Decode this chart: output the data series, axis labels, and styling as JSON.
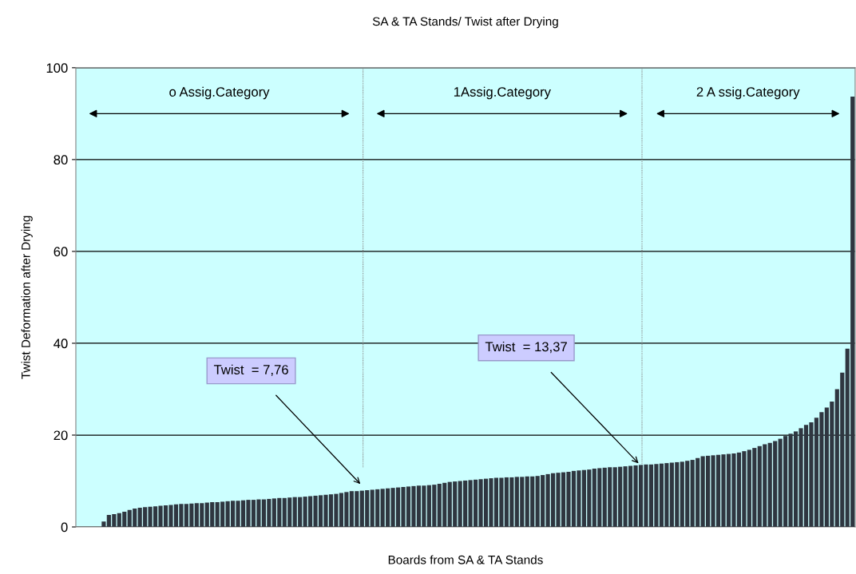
{
  "chart_data": {
    "type": "bar",
    "title": "SA & TA Stands/ Twist after Drying",
    "xlabel": "Boards from SA & TA Stands",
    "ylabel": "Twist Deformation after Drying",
    "categories": [
      null,
      null,
      null,
      null,
      null,
      null,
      null,
      null,
      null,
      null,
      null,
      null,
      null,
      null,
      null,
      null,
      null,
      null,
      null,
      null,
      null,
      null,
      null,
      null,
      null,
      null,
      null,
      null,
      null,
      null,
      null,
      null,
      null,
      null,
      null,
      null,
      null,
      null,
      null,
      null,
      null,
      null,
      null,
      null,
      null,
      null,
      null,
      null,
      null,
      null,
      null,
      null,
      null,
      null,
      null,
      null,
      null,
      null,
      null,
      null,
      null,
      null,
      null,
      null,
      null,
      null,
      null,
      null,
      null,
      null,
      null,
      null,
      null,
      null,
      null,
      null,
      null,
      null,
      null,
      null,
      null,
      null,
      null,
      null,
      null,
      null,
      null,
      null,
      null,
      null,
      null,
      null,
      null,
      null,
      null,
      null,
      null,
      null,
      null,
      null,
      null,
      null,
      null,
      null,
      null,
      null,
      null,
      null,
      null,
      null,
      null,
      null,
      null,
      null,
      null,
      null,
      null,
      null,
      null,
      null,
      null,
      null,
      null,
      null,
      null,
      null,
      null,
      null,
      null,
      null,
      null,
      null,
      null,
      null,
      null,
      null,
      null,
      null,
      null,
      null,
      null,
      null,
      null,
      null,
      null,
      null
    ],
    "values": [
      1.2,
      2.6,
      2.8,
      3.0,
      3.3,
      3.7,
      4.0,
      4.2,
      4.3,
      4.4,
      4.5,
      4.6,
      4.7,
      4.8,
      4.9,
      5.0,
      5.0,
      5.1,
      5.2,
      5.2,
      5.3,
      5.4,
      5.4,
      5.5,
      5.6,
      5.7,
      5.7,
      5.8,
      5.9,
      5.9,
      6.0,
      6.0,
      6.1,
      6.2,
      6.3,
      6.3,
      6.4,
      6.5,
      6.5,
      6.6,
      6.7,
      6.8,
      6.9,
      7.0,
      7.1,
      7.2,
      7.4,
      7.6,
      7.8,
      7.8,
      7.9,
      8.0,
      8.1,
      8.2,
      8.3,
      8.4,
      8.5,
      8.6,
      8.7,
      8.8,
      8.9,
      9.0,
      9.0,
      9.1,
      9.2,
      9.4,
      9.6,
      9.8,
      9.9,
      10.0,
      10.1,
      10.2,
      10.3,
      10.4,
      10.5,
      10.6,
      10.7,
      10.7,
      10.8,
      10.8,
      10.9,
      10.9,
      11.0,
      11.0,
      11.1,
      11.3,
      11.5,
      11.7,
      11.8,
      11.9,
      12.0,
      12.2,
      12.3,
      12.4,
      12.5,
      12.7,
      12.8,
      12.9,
      13.0,
      13.0,
      13.1,
      13.2,
      13.3,
      13.4,
      13.5,
      13.6,
      13.6,
      13.7,
      13.8,
      13.9,
      14.0,
      14.1,
      14.2,
      14.4,
      14.6,
      15.0,
      15.4,
      15.5,
      15.6,
      15.7,
      15.8,
      15.9,
      16.0,
      16.2,
      16.5,
      16.8,
      17.2,
      17.6,
      18.0,
      18.3,
      18.7,
      19.2,
      19.8,
      20.3,
      20.8,
      21.5,
      22.2,
      22.8,
      23.8,
      25.0,
      26.0,
      27.3,
      30.0,
      33.6,
      38.8,
      93.7
    ],
    "color": "#2f3640",
    "ylim": [
      0,
      100
    ],
    "yticks": [
      0,
      20,
      40,
      60,
      80,
      100
    ],
    "grid": "y",
    "annotations": [
      "o Assig.Category",
      "1Assig.Category",
      "2 A ssig.Category",
      "Twist  = 7,76",
      "Twist  = 13,37"
    ]
  }
}
